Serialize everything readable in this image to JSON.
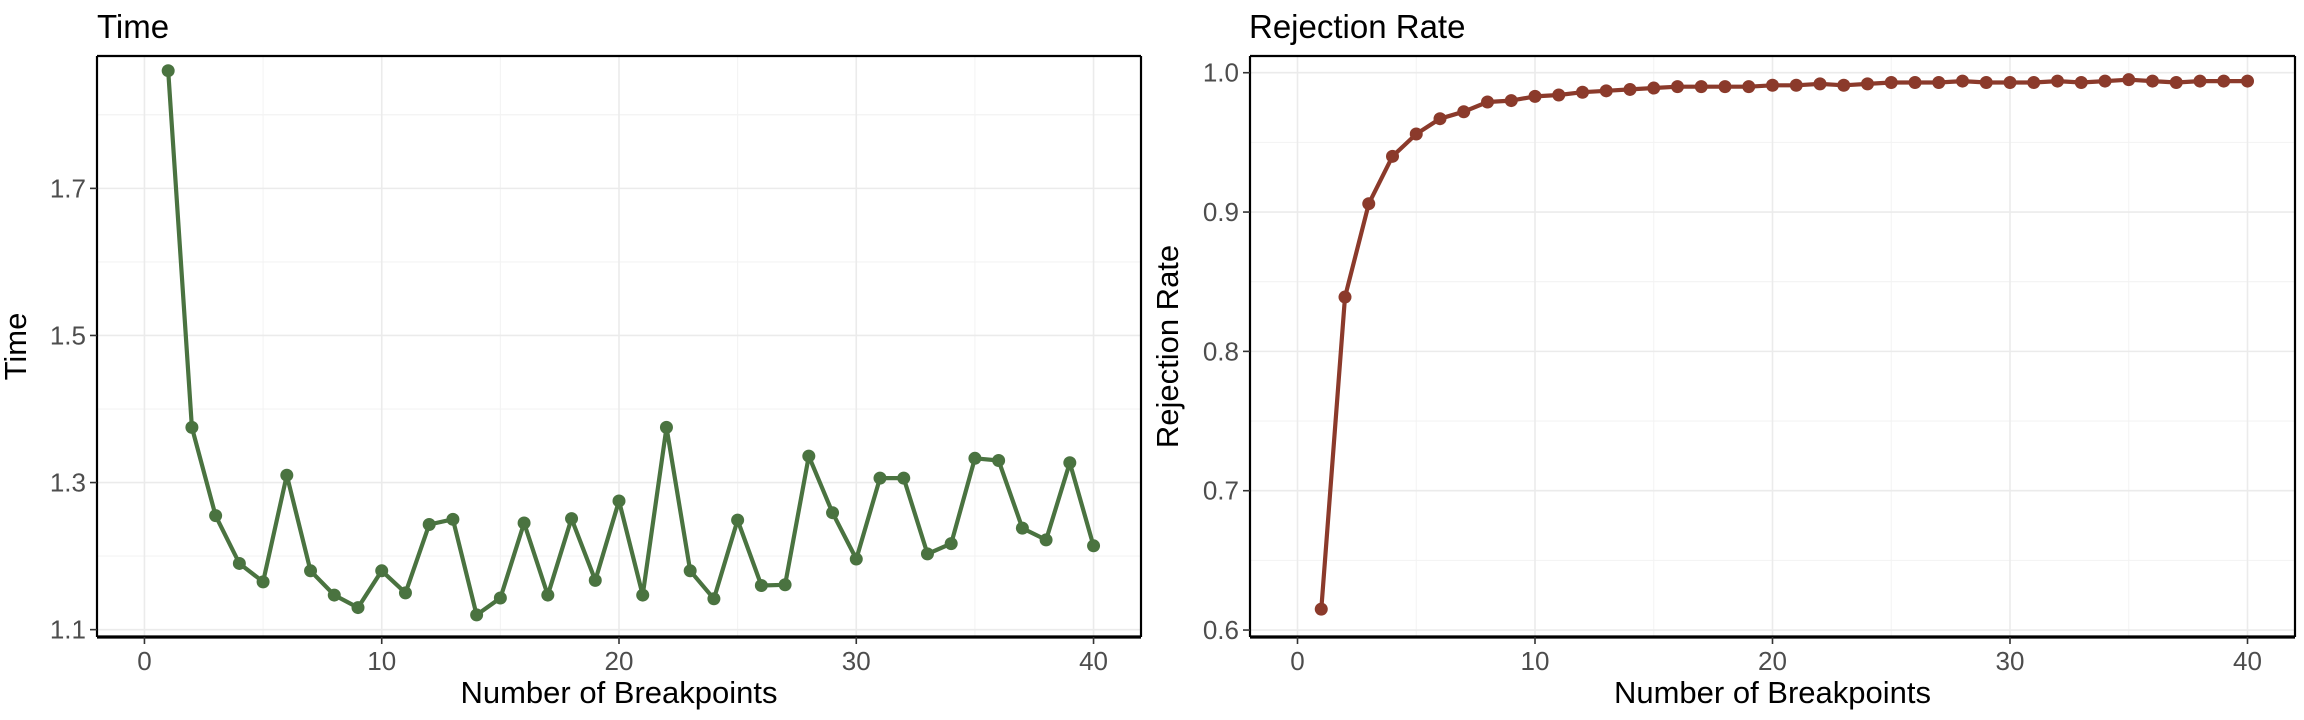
{
  "chart_data": [
    {
      "type": "line",
      "title": "Time",
      "xlabel": "Number of Breakpoints",
      "ylabel": "Time",
      "xlim": [
        -2,
        42
      ],
      "ylim": [
        1.09,
        1.88
      ],
      "xticks": [
        0,
        10,
        20,
        30,
        40
      ],
      "yticks": [
        1.1,
        1.3,
        1.5,
        1.7
      ],
      "xtick_labels": [
        "0",
        "10",
        "20",
        "30",
        "40"
      ],
      "ytick_labels": [
        "1.1",
        "1.3",
        "1.5",
        "1.7"
      ],
      "grid": true,
      "color": "#4a7340",
      "series": [
        {
          "x": [
            1,
            2,
            3,
            4,
            5,
            6,
            7,
            8,
            9,
            10,
            11,
            12,
            13,
            14,
            15,
            16,
            17,
            18,
            19,
            20,
            21,
            22,
            23,
            24,
            25,
            26,
            27,
            28,
            29,
            30,
            31,
            32,
            33,
            34,
            35,
            36,
            37,
            38,
            39,
            40
          ],
          "values": [
            1.86,
            1.375,
            1.255,
            1.19,
            1.165,
            1.31,
            1.18,
            1.147,
            1.13,
            1.18,
            1.15,
            1.243,
            1.25,
            1.12,
            1.143,
            1.245,
            1.147,
            1.251,
            1.167,
            1.275,
            1.147,
            1.375,
            1.18,
            1.142,
            1.249,
            1.16,
            1.161,
            1.336,
            1.259,
            1.196,
            1.306,
            1.306,
            1.203,
            1.217,
            1.333,
            1.33,
            1.238,
            1.222,
            1.327,
            1.214
          ]
        }
      ]
    },
    {
      "type": "line",
      "title": "Rejection Rate",
      "xlabel": "Number of Breakpoints",
      "ylabel": "Rejection Rate",
      "xlim": [
        -2,
        42
      ],
      "ylim": [
        0.595,
        1.012
      ],
      "xticks": [
        0,
        10,
        20,
        30,
        40
      ],
      "yticks": [
        0.6,
        0.7,
        0.8,
        0.9,
        1.0
      ],
      "xtick_labels": [
        "0",
        "10",
        "20",
        "30",
        "40"
      ],
      "ytick_labels": [
        "0.6",
        "0.7",
        "0.8",
        "0.9",
        "1.0"
      ],
      "grid": true,
      "color": "#8b3a2b",
      "series": [
        {
          "x": [
            1,
            2,
            3,
            4,
            5,
            6,
            7,
            8,
            9,
            10,
            11,
            12,
            13,
            14,
            15,
            16,
            17,
            18,
            19,
            20,
            21,
            22,
            23,
            24,
            25,
            26,
            27,
            28,
            29,
            30,
            31,
            32,
            33,
            34,
            35,
            36,
            37,
            38,
            39,
            40
          ],
          "values": [
            0.615,
            0.839,
            0.906,
            0.94,
            0.956,
            0.967,
            0.972,
            0.979,
            0.98,
            0.983,
            0.984,
            0.986,
            0.987,
            0.988,
            0.989,
            0.99,
            0.99,
            0.99,
            0.99,
            0.991,
            0.991,
            0.992,
            0.991,
            0.992,
            0.993,
            0.993,
            0.993,
            0.994,
            0.993,
            0.993,
            0.993,
            0.994,
            0.993,
            0.994,
            0.995,
            0.994,
            0.993,
            0.994,
            0.994,
            0.994
          ]
        }
      ]
    }
  ]
}
